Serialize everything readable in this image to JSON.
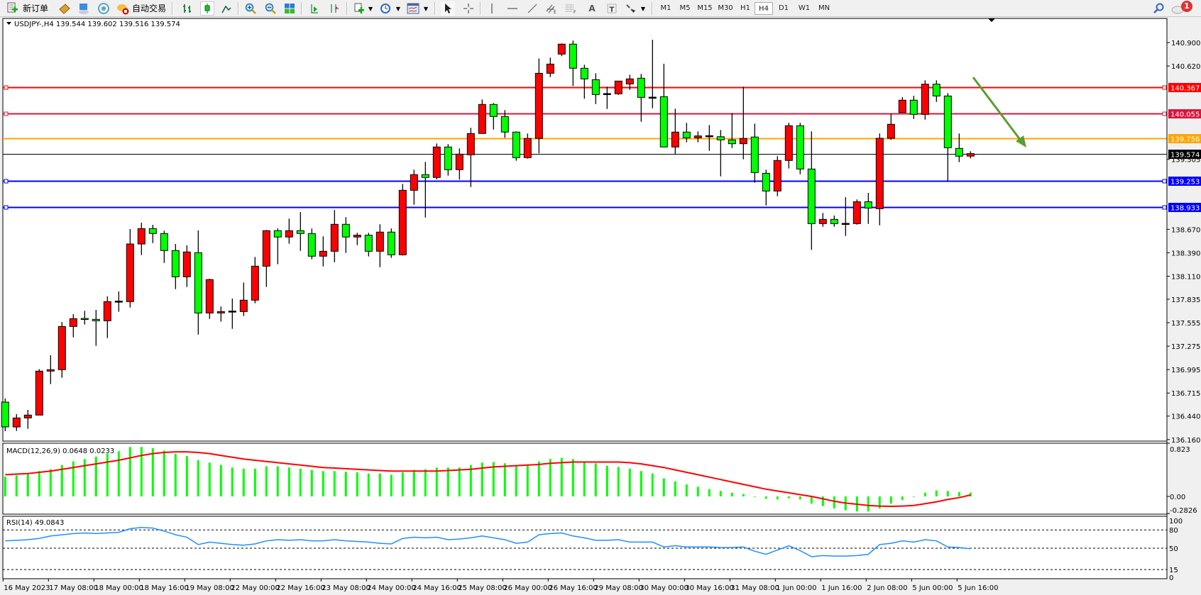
{
  "toolbar": {
    "new_order_label": "新订单",
    "auto_trading_label": "自动交易",
    "timeframes": [
      "M1",
      "M5",
      "M15",
      "M30",
      "H1",
      "H4",
      "D1",
      "W1",
      "MN"
    ],
    "active_timeframe": "H4",
    "notification_count": "1"
  },
  "chart": {
    "header": "USDJPY-,H4  139.544 139.602 139.516 139.574",
    "symbol": "USDJPY-",
    "timeframe": "H4",
    "bull_color": "#ff0000",
    "bear_color": "#00ff00",
    "price_ticks": [
      "140.900",
      "140.620",
      "139.505",
      "138.670",
      "138.390",
      "138.110",
      "137.835",
      "137.555",
      "137.275",
      "136.995",
      "136.715",
      "136.440",
      "136.160"
    ],
    "levels": [
      {
        "price": 140.367,
        "label": "140.367",
        "color": "#ff0000"
      },
      {
        "price": 140.055,
        "label": "140.055",
        "color": "#dc143c"
      },
      {
        "price": 139.756,
        "label": "139.756",
        "color": "#ffa500"
      },
      {
        "price": 139.574,
        "label": "139.574",
        "color": "#000000"
      },
      {
        "price": 139.253,
        "label": "139.253",
        "color": "#0000ff"
      },
      {
        "price": 138.933,
        "label": "138.933",
        "color": "#0000ff"
      }
    ],
    "arrow_color": "#5a9e2f",
    "time_labels": [
      "16 May 2023",
      "17 May 08:00",
      "18 May 00:00",
      "18 May 16:00",
      "19 May 08:00",
      "22 May 00:00",
      "22 May 16:00",
      "23 May 08:00",
      "24 May 00:00",
      "24 May 16:00",
      "25 May 08:00",
      "26 May 00:00",
      "26 May 16:00",
      "29 May 08:00",
      "30 May 00:00",
      "30 May 16:00",
      "31 May 08:00",
      "1 Jun 00:00",
      "1 Jun 16:00",
      "2 Jun 08:00",
      "5 Jun 00:00",
      "5 Jun 16:00"
    ]
  },
  "chart_data": {
    "type": "candlestick",
    "ohlc": [
      [
        136.607,
        136.65,
        136.26,
        136.311
      ],
      [
        136.31,
        136.463,
        136.263,
        136.418
      ],
      [
        136.418,
        136.514,
        136.288,
        136.452
      ],
      [
        136.452,
        137.0,
        136.45,
        136.977
      ],
      [
        136.977,
        137.166,
        136.822,
        136.994
      ],
      [
        136.994,
        137.564,
        136.898,
        137.51
      ],
      [
        137.51,
        137.657,
        137.38,
        137.603
      ],
      [
        137.6,
        137.697,
        137.533,
        137.598
      ],
      [
        137.595,
        137.708,
        137.279,
        137.578
      ],
      [
        137.578,
        137.869,
        137.372,
        137.807
      ],
      [
        137.807,
        137.928,
        137.686,
        137.807
      ],
      [
        137.807,
        138.673,
        137.736,
        138.495
      ],
      [
        138.495,
        138.749,
        138.362,
        138.679
      ],
      [
        138.679,
        138.724,
        138.506,
        138.62
      ],
      [
        138.62,
        138.653,
        138.269,
        138.417
      ],
      [
        138.417,
        138.495,
        137.956,
        138.103
      ],
      [
        138.103,
        138.478,
        137.981,
        138.4
      ],
      [
        138.391,
        138.656,
        137.414,
        137.671
      ],
      [
        137.671,
        138.08,
        137.6,
        138.07
      ],
      [
        137.671,
        137.748,
        137.567,
        137.688
      ],
      [
        137.688,
        137.843,
        137.482,
        137.688
      ],
      [
        137.688,
        138.035,
        137.634,
        137.824
      ],
      [
        137.824,
        138.34,
        137.787,
        138.23
      ],
      [
        138.23,
        138.662,
        137.982,
        138.654
      ],
      [
        138.654,
        138.68,
        138.253,
        138.578
      ],
      [
        138.578,
        138.798,
        138.498,
        138.654
      ],
      [
        138.654,
        138.876,
        138.413,
        138.62
      ],
      [
        138.62,
        138.68,
        138.312,
        138.349
      ],
      [
        138.349,
        138.586,
        138.227,
        138.408
      ],
      [
        138.408,
        138.9,
        138.277,
        138.73
      ],
      [
        138.73,
        138.815,
        138.388,
        138.578
      ],
      [
        138.578,
        138.628,
        138.481,
        138.6
      ],
      [
        138.6,
        138.628,
        138.346,
        138.408
      ],
      [
        138.408,
        138.73,
        138.218,
        138.637
      ],
      [
        138.637,
        138.68,
        138.329,
        138.366
      ],
      [
        138.366,
        139.212,
        138.358,
        139.136
      ],
      [
        139.136,
        139.382,
        138.964,
        139.323
      ],
      [
        139.323,
        139.475,
        138.811,
        139.289
      ],
      [
        139.289,
        139.695,
        139.266,
        139.653
      ],
      [
        139.653,
        139.687,
        139.311,
        139.382
      ],
      [
        139.382,
        139.636,
        139.263,
        139.568
      ],
      [
        139.56,
        139.882,
        139.175,
        139.814
      ],
      [
        139.814,
        140.22,
        139.814,
        140.161
      ],
      [
        140.161,
        140.178,
        139.861,
        140.017
      ],
      [
        140.017,
        140.093,
        139.763,
        139.831
      ],
      [
        139.831,
        139.839,
        139.489,
        139.526
      ],
      [
        139.526,
        139.814,
        139.514,
        139.755
      ],
      [
        139.755,
        140.711,
        139.577,
        140.533
      ],
      [
        140.533,
        140.72,
        140.488,
        140.643
      ],
      [
        140.762,
        140.889,
        140.737,
        140.881
      ],
      [
        140.881,
        140.923,
        140.381,
        140.593
      ],
      [
        140.593,
        140.635,
        140.229,
        140.466
      ],
      [
        140.457,
        140.533,
        140.166,
        140.279
      ],
      [
        140.285,
        140.373,
        140.107,
        140.285
      ],
      [
        140.288,
        140.44,
        140.276,
        140.44
      ],
      [
        140.406,
        140.516,
        140.335,
        140.466
      ],
      [
        140.474,
        140.525,
        139.954,
        140.245
      ],
      [
        140.242,
        140.934,
        140.115,
        140.242
      ],
      [
        140.254,
        140.647,
        139.653,
        139.653
      ],
      [
        139.653,
        140.11,
        139.565,
        139.831
      ],
      [
        139.831,
        139.941,
        139.709,
        139.763
      ],
      [
        139.763,
        139.839,
        139.709,
        139.785
      ],
      [
        139.782,
        139.915,
        139.607,
        139.782
      ],
      [
        139.776,
        139.856,
        139.302,
        139.738
      ],
      [
        139.738,
        140.059,
        139.641,
        139.692
      ],
      [
        139.692,
        140.373,
        139.506,
        139.755
      ],
      [
        139.772,
        139.932,
        139.226,
        139.348
      ],
      [
        139.339,
        139.382,
        138.955,
        139.127
      ],
      [
        139.127,
        139.543,
        139.065,
        139.492
      ],
      [
        139.492,
        139.941,
        139.396,
        139.907
      ],
      [
        139.907,
        139.941,
        139.328,
        139.39
      ],
      [
        139.39,
        139.839,
        138.425,
        138.738
      ],
      [
        138.738,
        138.865,
        138.701,
        138.789
      ],
      [
        138.789,
        138.835,
        138.701,
        138.738
      ],
      [
        138.735,
        139.054,
        138.591,
        138.735
      ],
      [
        138.738,
        139.027,
        138.726,
        138.999
      ],
      [
        138.999,
        139.105,
        138.735,
        138.924
      ],
      [
        138.916,
        139.814,
        138.718,
        139.757
      ],
      [
        139.757,
        140.053,
        139.738,
        139.924
      ],
      [
        140.064,
        140.248,
        140.064,
        140.212
      ],
      [
        140.212,
        140.265,
        139.988,
        140.042
      ],
      [
        140.042,
        140.449,
        139.98,
        140.403
      ],
      [
        140.403,
        140.449,
        140.191,
        140.262
      ],
      [
        140.262,
        140.296,
        139.243,
        139.644
      ],
      [
        139.636,
        139.814,
        139.472,
        139.543
      ],
      [
        139.544,
        139.602,
        139.516,
        139.574
      ]
    ],
    "ylim": [
      136.16,
      140.9
    ],
    "macd": {
      "label": "MACD(12,26,9) 0.0648 0.0233",
      "ylim": [
        -0.2826,
        0.823
      ],
      "ticks": [
        "0.823",
        "0.00",
        "-0.2826"
      ],
      "histogram_color": "#00ff00",
      "signal_color": "#ff0000",
      "histogram": [
        0.33,
        0.35,
        0.37,
        0.42,
        0.45,
        0.52,
        0.58,
        0.62,
        0.66,
        0.71,
        0.75,
        0.82,
        0.82,
        0.8,
        0.76,
        0.71,
        0.67,
        0.6,
        0.56,
        0.52,
        0.48,
        0.46,
        0.46,
        0.5,
        0.5,
        0.48,
        0.46,
        0.44,
        0.42,
        0.42,
        0.41,
        0.4,
        0.38,
        0.38,
        0.36,
        0.4,
        0.44,
        0.45,
        0.48,
        0.48,
        0.48,
        0.52,
        0.56,
        0.57,
        0.55,
        0.52,
        0.52,
        0.58,
        0.62,
        0.64,
        0.62,
        0.58,
        0.55,
        0.51,
        0.49,
        0.46,
        0.42,
        0.38,
        0.3,
        0.25,
        0.2,
        0.16,
        0.12,
        0.09,
        0.06,
        0.04,
        0.0,
        -0.04,
        -0.05,
        -0.03,
        -0.05,
        -0.12,
        -0.16,
        -0.2,
        -0.23,
        -0.25,
        -0.25,
        -0.2,
        -0.12,
        -0.06,
        0.0,
        0.06,
        0.1,
        0.09,
        0.07,
        0.0648
      ],
      "signal": [
        0.36,
        0.37,
        0.38,
        0.4,
        0.42,
        0.45,
        0.48,
        0.51,
        0.54,
        0.57,
        0.6,
        0.64,
        0.68,
        0.71,
        0.73,
        0.74,
        0.74,
        0.73,
        0.71,
        0.68,
        0.65,
        0.62,
        0.6,
        0.58,
        0.56,
        0.54,
        0.52,
        0.5,
        0.48,
        0.47,
        0.46,
        0.45,
        0.44,
        0.43,
        0.42,
        0.42,
        0.42,
        0.42,
        0.42,
        0.43,
        0.44,
        0.45,
        0.47,
        0.49,
        0.5,
        0.51,
        0.52,
        0.53,
        0.55,
        0.56,
        0.57,
        0.57,
        0.57,
        0.57,
        0.57,
        0.56,
        0.54,
        0.51,
        0.48,
        0.44,
        0.4,
        0.36,
        0.32,
        0.28,
        0.24,
        0.2,
        0.16,
        0.12,
        0.09,
        0.06,
        0.03,
        0.0,
        -0.04,
        -0.08,
        -0.11,
        -0.13,
        -0.15,
        -0.16,
        -0.165,
        -0.16,
        -0.15,
        -0.12,
        -0.09,
        -0.05,
        -0.02,
        0.0233
      ]
    },
    "rsi": {
      "label": "RSI(14) 49.0843",
      "ylim": [
        0,
        100
      ],
      "ticks": [
        "100",
        "80",
        "50",
        "15",
        "0"
      ],
      "levels": [
        80,
        50,
        15
      ],
      "line_color": "#1e90ff",
      "values": [
        62,
        63,
        64,
        66,
        70,
        72,
        74,
        75,
        74,
        75,
        76,
        82,
        84,
        83,
        78,
        72,
        68,
        56,
        60,
        58,
        56,
        55,
        57,
        62,
        64,
        63,
        64,
        62,
        62,
        64,
        62,
        61,
        60,
        58,
        57,
        66,
        68,
        67,
        68,
        64,
        65,
        67,
        70,
        67,
        64,
        58,
        60,
        72,
        74,
        75,
        70,
        67,
        63,
        63,
        64,
        60,
        60,
        60,
        52,
        54,
        52,
        52,
        52,
        51,
        51,
        52,
        45,
        40,
        47,
        54,
        46,
        36,
        38,
        37,
        37,
        38,
        40,
        56,
        58,
        62,
        60,
        64,
        62,
        52,
        51,
        49.08
      ]
    }
  }
}
